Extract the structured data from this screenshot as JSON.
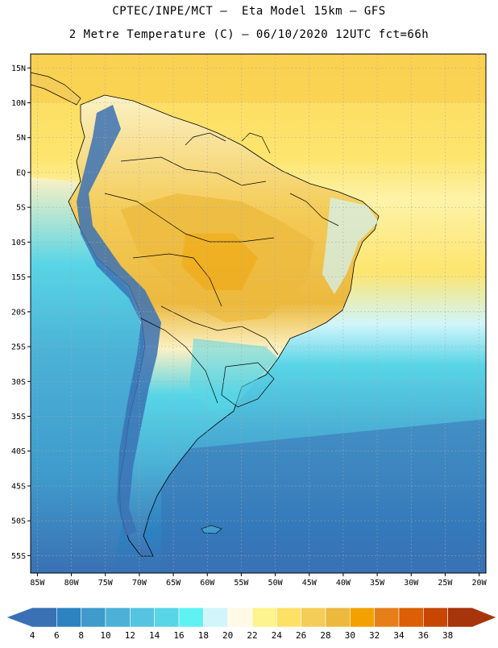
{
  "title_line1": "CPTEC/INPE/MCT –  Eta Model 15km – GFS",
  "title_line2": "2 Metre Temperature (C) – 06/10/2020 12UTC fct=66h",
  "lat_labels": [
    "15N",
    "10N",
    "5N",
    "EQ",
    "5S",
    "10S",
    "15S",
    "20S",
    "25S",
    "30S",
    "35S",
    "40S",
    "45S",
    "50S",
    "55S"
  ],
  "lon_labels": [
    "85W",
    "80W",
    "75W",
    "70W",
    "65W",
    "60W",
    "55W",
    "50W",
    "45W",
    "40W",
    "35W",
    "30W",
    "25W",
    "20W"
  ],
  "colorbar": {
    "values": [
      "4",
      "6",
      "8",
      "10",
      "12",
      "14",
      "16",
      "18",
      "20",
      "22",
      "24",
      "26",
      "28",
      "30",
      "32",
      "34",
      "36",
      "38"
    ],
    "colors": [
      "#3a71b4",
      "#2d82c0",
      "#3f9bcc",
      "#4bb1d6",
      "#55c4e0",
      "#58d5e6",
      "#5ef2f5",
      "#d1f5fb",
      "#fff9e5",
      "#fdf38f",
      "#fde166",
      "#f4cc58",
      "#ecb93e",
      "#f2a101",
      "#e67f18",
      "#dc5e06",
      "#c64602",
      "#a8340b"
    ]
  },
  "map_colors": {
    "ocean_tropical": "#fbe36e",
    "ocean_cool": "#56d3e6",
    "ocean_cold": "#45a9d3",
    "ocean_frigid": "#2d7fc1",
    "land_hot": "#f0c149",
    "land_warm": "#fbf1c4",
    "andes": "#3b72b5",
    "coast_line": "#000000",
    "grid_line": "#a8a8a8"
  }
}
